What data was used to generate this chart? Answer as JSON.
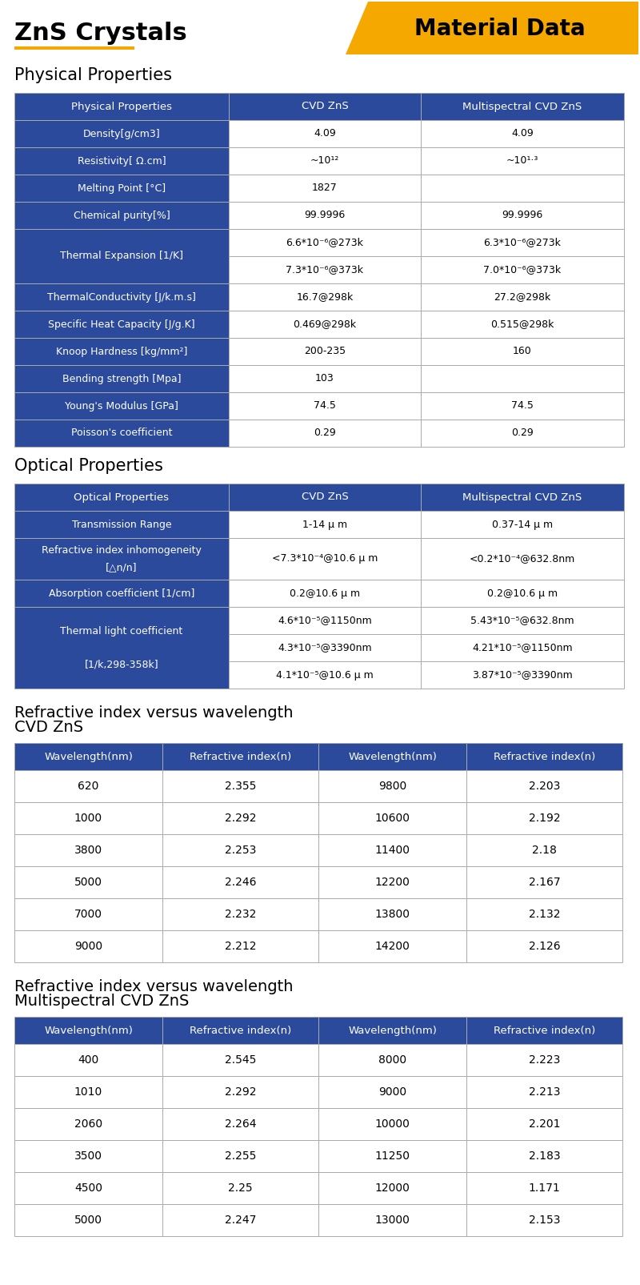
{
  "title": "ZnS Crystals",
  "badge": "Material Data",
  "badge_color": "#F5A800",
  "header_color": "#2B4A9B",
  "header_text_color": "#FFFFFF",
  "table_border_color": "#CCCCCC",
  "physical_section_title": "Physical Properties",
  "optical_section_title": "Optical Properties",
  "ri_cvd_title_line1": "Refractive index versus wavelength",
  "ri_cvd_title_line2": "CVD ZnS",
  "ri_multi_title_line1": "Refractive index versus wavelength",
  "ri_multi_title_line2": "Multispectral CVD ZnS",
  "phys_headers": [
    "Physical Properties",
    "CVD ZnS",
    "Multispectral CVD ZnS"
  ],
  "phys_rows": [
    [
      "Density[g/cm3]",
      "4.09",
      "4.09"
    ],
    [
      "Resistivity[ Ω.cm]",
      "~10¹²",
      "~10¹·³"
    ],
    [
      "Melting Point [°C]",
      "1827",
      ""
    ],
    [
      "Chemical purity[%]",
      "99.9996",
      "99.9996"
    ],
    [
      "Thermal Expansion [1/K]",
      "DUAL:6.6*10⁻⁶@273k|7.3*10⁻⁶@373k",
      "DUAL:6.3*10⁻⁶@273k|7.0*10⁻⁶@373k"
    ],
    [
      "ThermalConductivity [J/k.m.s]",
      "16.7@298k",
      "27.2@298k"
    ],
    [
      "Specific Heat Capacity [J/g.K]",
      "0.469@298k",
      "0.515@298k"
    ],
    [
      "Knoop Hardness [kg/mm²]",
      "200-235",
      "160"
    ],
    [
      "Bending strength [Mpa]",
      "103",
      ""
    ],
    [
      "Young's Modulus [GPa]",
      "74.5",
      "74.5"
    ],
    [
      "Poisson's coefficient",
      "0.29",
      "0.29"
    ]
  ],
  "opt_headers": [
    "Optical Properties",
    "CVD ZnS",
    "Multispectral CVD ZnS"
  ],
  "opt_rows": [
    [
      "Transmission Range",
      "1-14 μ m",
      "0.37-14 μ m"
    ],
    [
      "Refractive index inhomogeneity\n[△n/n]",
      "<7.3*10⁻⁴@10.6 μ m",
      "<0.2*10⁻⁴@632.8nm"
    ],
    [
      "Absorption coefficient [1/cm]",
      "0.2@10.6 μ m",
      "0.2@10.6 μ m"
    ],
    [
      "Thermal light coefficient\n[1/k,298-358k]",
      "TRIPLE:4.6*10⁻⁵@1150nm|4.3*10⁻⁵@3390nm|4.1*10⁻⁵@10.6 μ m",
      "TRIPLE:5.43*10⁻⁵@632.8nm|4.21*10⁻⁵@1150nm|3.87*10⁻⁵@3390nm"
    ]
  ],
  "ri_cvd_headers": [
    "Wavelength(nm)",
    "Refractive index(n)",
    "Wavelength(nm)",
    "Refractive index(n)"
  ],
  "ri_cvd_rows": [
    [
      "620",
      "2.355",
      "9800",
      "2.203"
    ],
    [
      "1000",
      "2.292",
      "10600",
      "2.192"
    ],
    [
      "3800",
      "2.253",
      "11400",
      "2.18"
    ],
    [
      "5000",
      "2.246",
      "12200",
      "2.167"
    ],
    [
      "7000",
      "2.232",
      "13800",
      "2.132"
    ],
    [
      "9000",
      "2.212",
      "14200",
      "2.126"
    ]
  ],
  "ri_multi_headers": [
    "Wavelength(nm)",
    "Refractive index(n)",
    "Wavelength(nm)",
    "Refractive index(n)"
  ],
  "ri_multi_rows": [
    [
      "400",
      "2.545",
      "8000",
      "2.223"
    ],
    [
      "1010",
      "2.292",
      "9000",
      "2.213"
    ],
    [
      "2060",
      "2.264",
      "10000",
      "2.201"
    ],
    [
      "3500",
      "2.255",
      "11250",
      "2.183"
    ],
    [
      "4500",
      "2.25",
      "12000",
      "1.171"
    ],
    [
      "5000",
      "2.247",
      "13000",
      "2.153"
    ]
  ]
}
